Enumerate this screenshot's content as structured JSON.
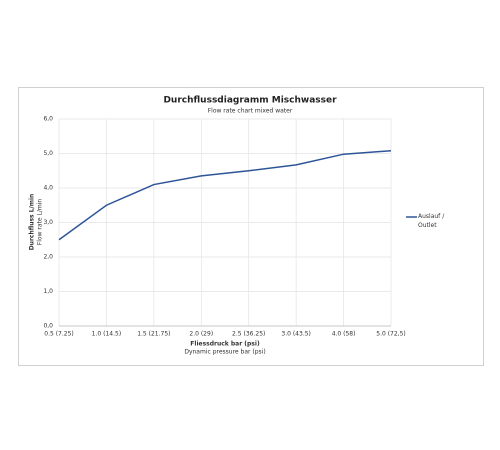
{
  "chart_data": {
    "type": "line",
    "title": "Durchflussdiagramm Mischwasser",
    "subtitle": "Flow rate chart mixed water",
    "xlabel": "Fliessdruck bar (psi)",
    "xlabel_sub": "Dynamic pressure bar (psi)",
    "ylabel": "Durchfluss L/min",
    "ylabel_sub": "Flow rate L/min",
    "categories": [
      "0.5 (7.25)",
      "1.0 (14.5)",
      "1.5 (21.75)",
      "2.0 (29)",
      "2.5 (36.25)",
      "3.0 (43.5)",
      "4.0 (58)",
      "5.0 (72,5)"
    ],
    "series": [
      {
        "name": "Auslauf / Outlet",
        "color": "#2e5597",
        "values": [
          2.5,
          3.5,
          4.1,
          4.35,
          4.5,
          4.67,
          4.98,
          5.08
        ]
      }
    ],
    "ylim": [
      0,
      6
    ],
    "yticks": [
      {
        "value": 0,
        "label": "0,0"
      },
      {
        "value": 1,
        "label": "1,0"
      },
      {
        "value": 2,
        "label": "2,0"
      },
      {
        "value": 3,
        "label": "3,0"
      },
      {
        "value": 4,
        "label": "4,0"
      },
      {
        "value": 5,
        "label": "5,0"
      },
      {
        "value": 6,
        "label": "6,0"
      }
    ],
    "grid": true,
    "legend": "right"
  }
}
